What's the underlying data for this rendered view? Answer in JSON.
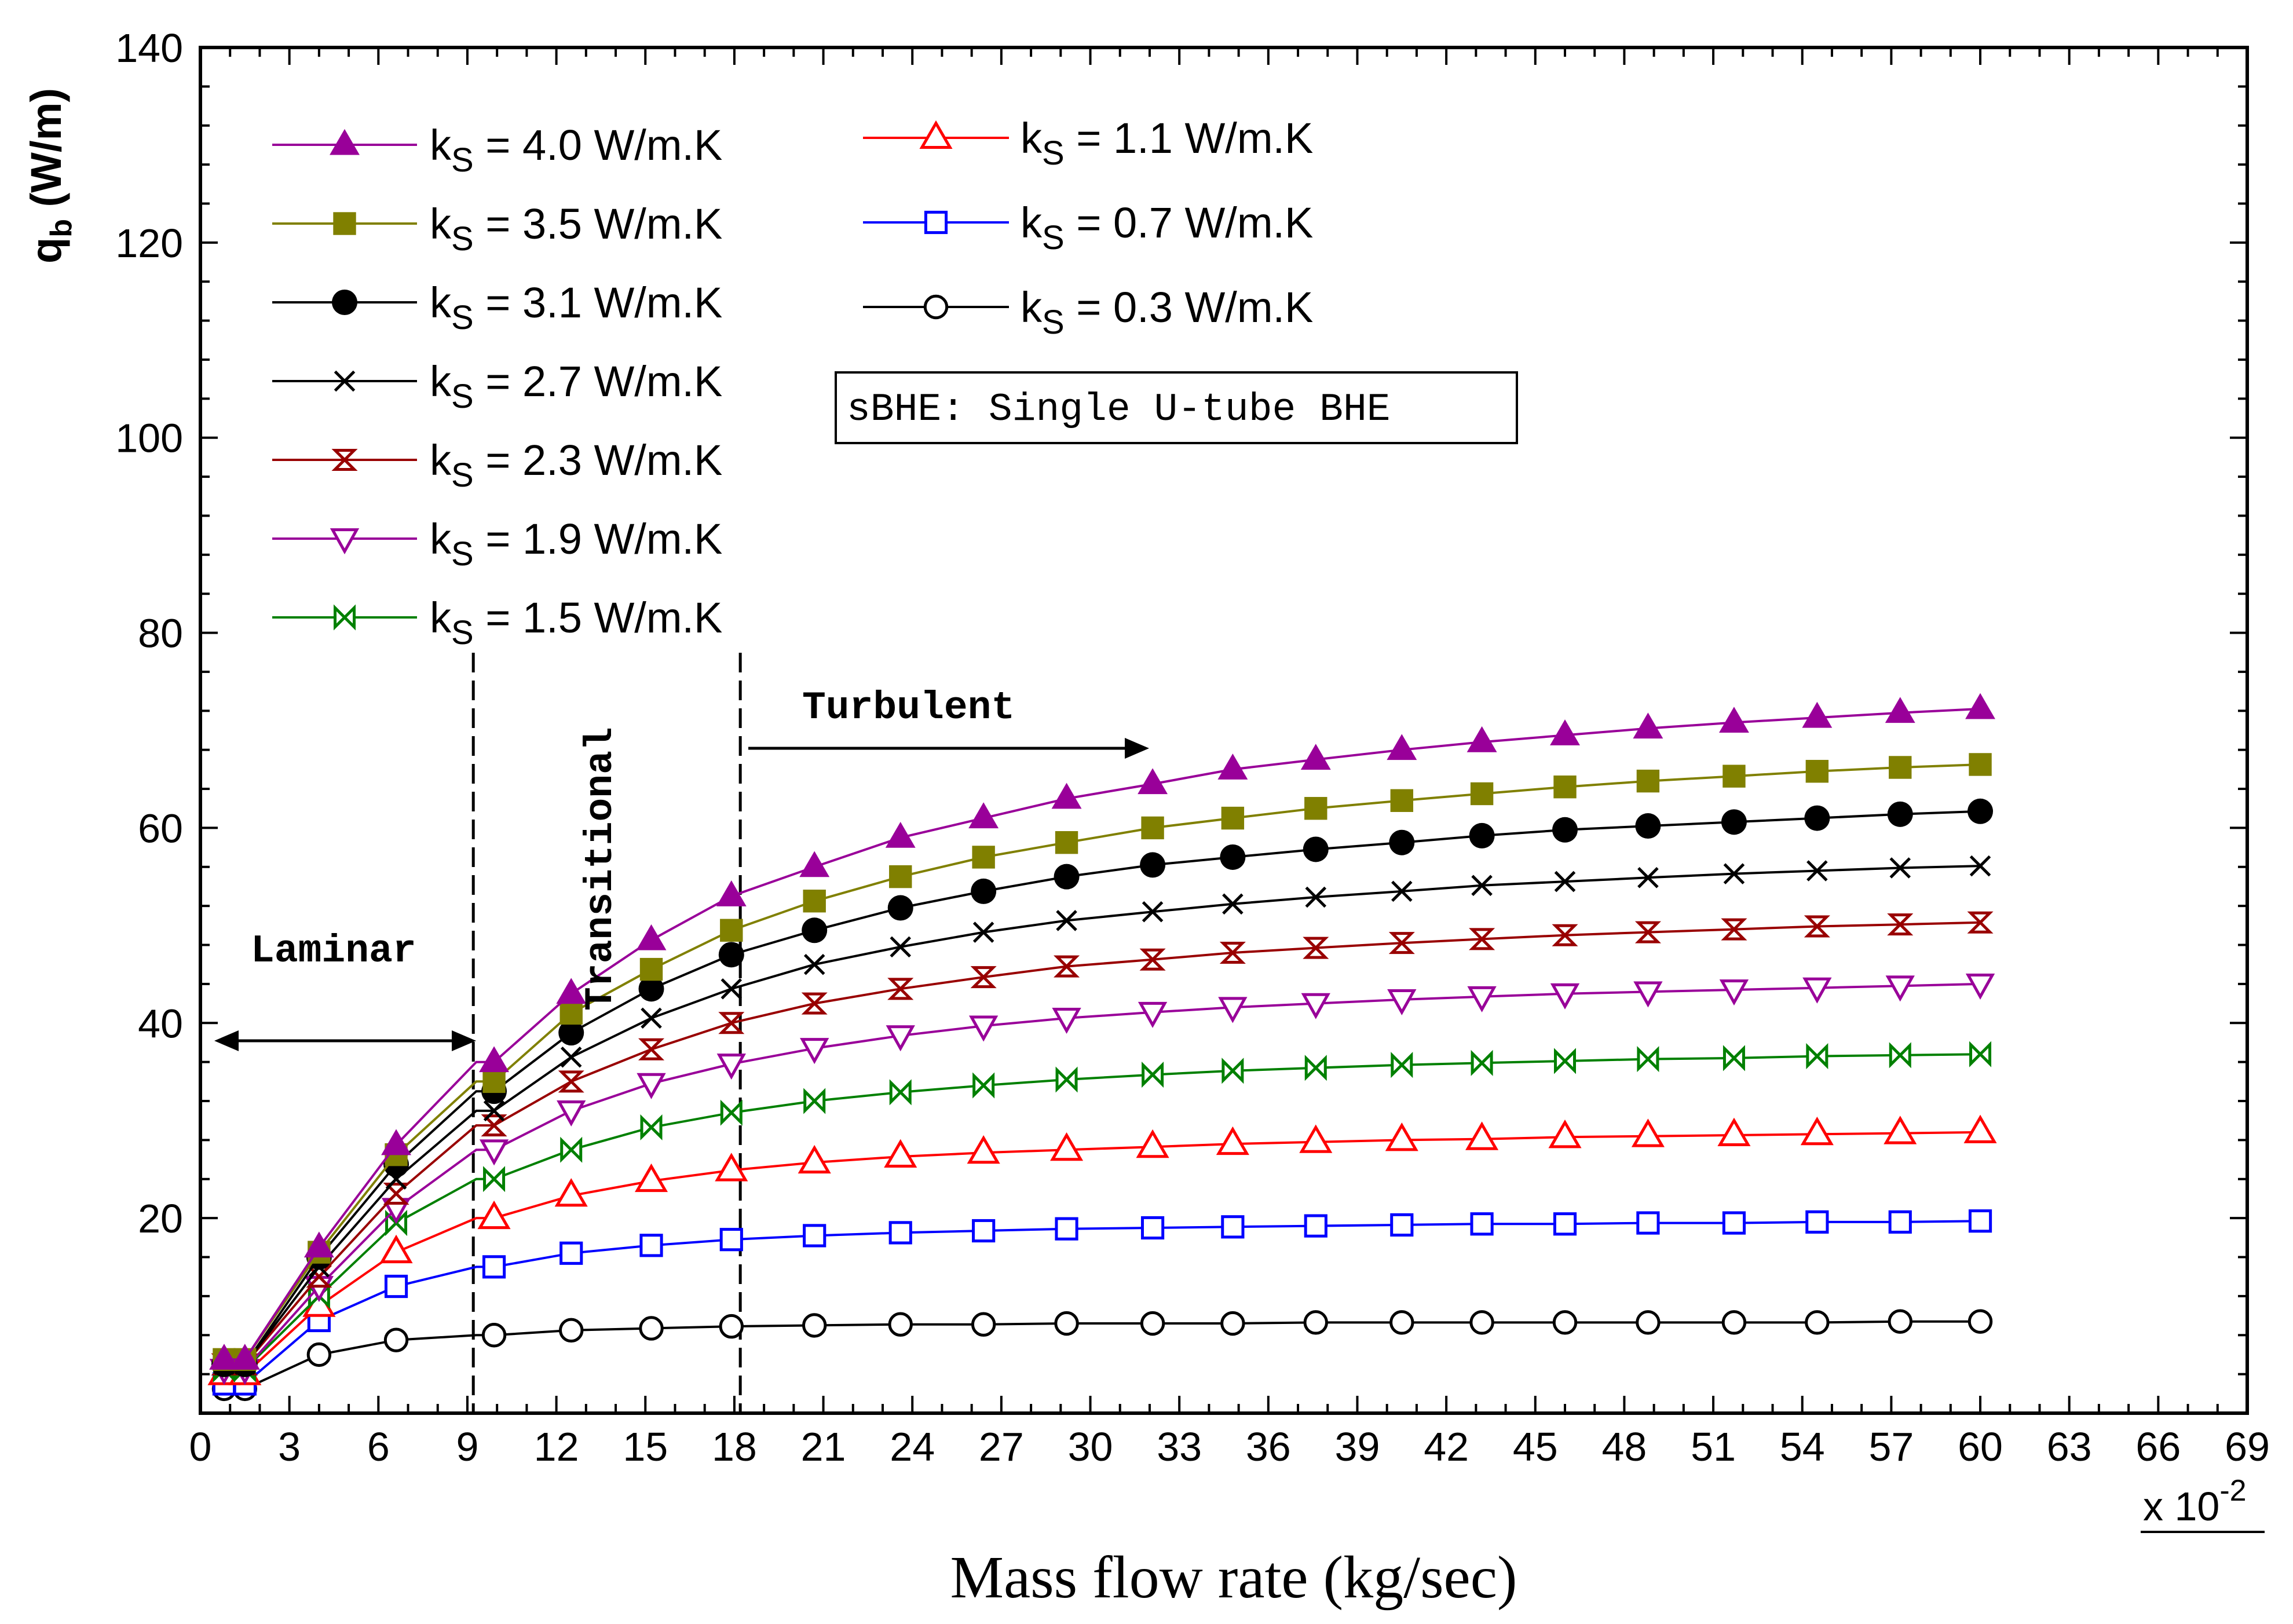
{
  "chart_data": {
    "type": "line",
    "xlabel": "Mass flow rate (kg/sec)",
    "ylabel": "q",
    "ylabel_sub": "b",
    "ylabel_unit": " (W/m)",
    "x_multiplier": "x 10",
    "x_multiplier_exp": "-2",
    "xlim": [
      0,
      69
    ],
    "ylim": [
      0,
      140
    ],
    "x_ticks": [
      0,
      3,
      6,
      9,
      12,
      15,
      18,
      21,
      24,
      27,
      30,
      33,
      36,
      39,
      42,
      45,
      48,
      51,
      54,
      57,
      60,
      63,
      66,
      69
    ],
    "y_ticks": [
      20,
      40,
      60,
      80,
      100,
      120,
      140
    ],
    "grid": false,
    "legend_position": "top-left",
    "annotations": {
      "box": "sBHE: Single U-tube BHE",
      "laminar": "Laminar",
      "transitional": "Transitional",
      "turbulent": "Turbulent",
      "boundaries": [
        9.2,
        18.2
      ]
    },
    "x": [
      0.8,
      1.5,
      4.0,
      6.6,
      9.3,
      9.9,
      12.5,
      15.2,
      17.9,
      20.7,
      23.6,
      26.4,
      29.2,
      32.1,
      34.8,
      37.6,
      40.5,
      43.2,
      46.0,
      48.8,
      51.7,
      54.5,
      57.3,
      60.0
    ],
    "series": [
      {
        "name": "k",
        "sub": "S",
        "rest": " = 4.0 W/m.K",
        "marker": "triangle-filled",
        "color": "#990099",
        "values": [
          5.5,
          5.5,
          17.0,
          27.5,
          36.0,
          36.0,
          43.0,
          48.5,
          53.0,
          56.0,
          59.0,
          61.0,
          63.0,
          64.5,
          66.0,
          67.0,
          68.0,
          68.8,
          69.5,
          70.2,
          70.8,
          71.3,
          71.8,
          72.2
        ]
      },
      {
        "name": "k",
        "sub": "S",
        "rest": " = 3.5 W/m.K",
        "marker": "square-filled",
        "color": "#808000",
        "values": [
          5.5,
          5.5,
          16.5,
          26.5,
          34.0,
          34.0,
          41.0,
          45.5,
          49.5,
          52.5,
          55.0,
          57.0,
          58.5,
          60.0,
          61.0,
          62.0,
          62.8,
          63.5,
          64.2,
          64.8,
          65.3,
          65.8,
          66.2,
          66.5
        ]
      },
      {
        "name": "k",
        "sub": "S",
        "rest": " = 3.1 W/m.K",
        "marker": "circle-filled",
        "color": "#000000",
        "values": [
          5.0,
          5.0,
          16.0,
          25.5,
          33.0,
          33.0,
          39.0,
          43.5,
          47.0,
          49.5,
          51.8,
          53.5,
          55.0,
          56.2,
          57.0,
          57.8,
          58.5,
          59.2,
          59.8,
          60.2,
          60.6,
          61.0,
          61.4,
          61.7
        ]
      },
      {
        "name": "k",
        "sub": "S",
        "rest": " = 2.7 W/m.K",
        "marker": "x",
        "color": "#000000",
        "values": [
          5.0,
          5.0,
          15.0,
          24.0,
          31.0,
          31.0,
          36.5,
          40.5,
          43.5,
          46.0,
          47.8,
          49.3,
          50.5,
          51.4,
          52.2,
          52.9,
          53.5,
          54.1,
          54.5,
          54.9,
          55.3,
          55.6,
          55.9,
          56.1
        ]
      },
      {
        "name": "k",
        "sub": "S",
        "rest": " = 2.3 W/m.K",
        "marker": "bowtie-v",
        "color": "#990000",
        "values": [
          5.0,
          5.0,
          14.0,
          22.5,
          29.5,
          29.5,
          34.0,
          37.3,
          40.0,
          42.0,
          43.5,
          44.7,
          45.8,
          46.5,
          47.2,
          47.7,
          48.2,
          48.6,
          49.0,
          49.3,
          49.6,
          49.9,
          50.1,
          50.3
        ]
      },
      {
        "name": "k",
        "sub": "S",
        "rest": " = 1.9 W/m.K",
        "marker": "triangle-down-open",
        "color": "#990099",
        "values": [
          4.5,
          4.5,
          13.0,
          21.0,
          27.0,
          27.0,
          31.0,
          33.8,
          35.8,
          37.4,
          38.7,
          39.7,
          40.5,
          41.1,
          41.6,
          42.0,
          42.4,
          42.7,
          43.0,
          43.2,
          43.4,
          43.6,
          43.8,
          44.0
        ]
      },
      {
        "name": "k",
        "sub": "S",
        "rest": " = 1.5 W/m.K",
        "marker": "bowtie-h",
        "color": "#008000",
        "values": [
          4.5,
          4.5,
          12.0,
          19.5,
          24.0,
          24.0,
          27.0,
          29.3,
          30.8,
          32.0,
          32.9,
          33.6,
          34.2,
          34.7,
          35.1,
          35.4,
          35.7,
          35.9,
          36.1,
          36.3,
          36.4,
          36.6,
          36.7,
          36.8
        ]
      },
      {
        "name": "k",
        "sub": "S",
        "rest": " = 1.1 W/m.K",
        "marker": "triangle-open",
        "color": "#ff0000",
        "values": [
          4.0,
          4.0,
          11.0,
          16.5,
          20.0,
          20.0,
          22.3,
          23.8,
          24.9,
          25.7,
          26.3,
          26.7,
          27.0,
          27.3,
          27.6,
          27.8,
          28.0,
          28.1,
          28.3,
          28.4,
          28.5,
          28.6,
          28.7,
          28.8
        ]
      },
      {
        "name": "k",
        "sub": "S",
        "rest": " = 0.7 W/m.K",
        "marker": "square-open",
        "color": "#0000ff",
        "values": [
          3.0,
          3.0,
          9.5,
          13.0,
          15.0,
          15.0,
          16.4,
          17.2,
          17.8,
          18.2,
          18.5,
          18.7,
          18.9,
          19.0,
          19.1,
          19.2,
          19.3,
          19.4,
          19.4,
          19.5,
          19.5,
          19.6,
          19.6,
          19.7
        ]
      },
      {
        "name": "k",
        "sub": "S",
        "rest": " = 0.3 W/m.K",
        "marker": "circle-open",
        "color": "#000000",
        "values": [
          2.5,
          2.5,
          6.0,
          7.5,
          8.0,
          8.0,
          8.5,
          8.7,
          8.9,
          9.0,
          9.1,
          9.1,
          9.2,
          9.2,
          9.2,
          9.3,
          9.3,
          9.3,
          9.3,
          9.3,
          9.3,
          9.3,
          9.4,
          9.4
        ]
      }
    ]
  }
}
